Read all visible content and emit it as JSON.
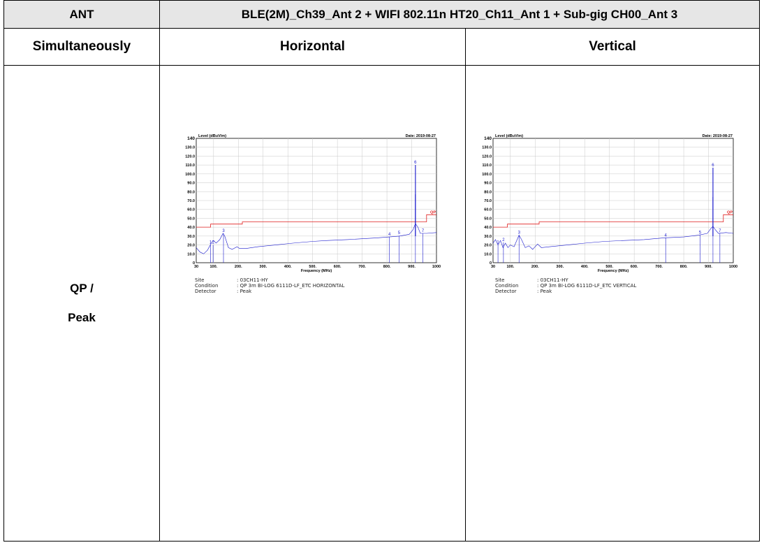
{
  "table": {
    "header_ant": "ANT",
    "header_config": "BLE(2M)_Ch39_Ant 2 + WIFI 802.11n HT20_Ch11_Ant 1 + Sub-gig CH00_Ant 3",
    "row_label": "Simultaneously",
    "col_horizontal": "Horizontal",
    "col_vertical": "Vertical",
    "mode_line1": "QP /",
    "mode_line2": "Peak"
  },
  "plots": [
    {
      "meta": {
        "site_key": "Site",
        "site_val": ": 03CH11-HY",
        "condition_key": "Condition",
        "condition_val": ": QP 3m BI-LOG 6111D-LF_ETC HORIZONTAL",
        "detector_key": "Detector",
        "detector_val": ": Peak"
      }
    },
    {
      "meta": {
        "site_key": "Site",
        "site_val": ": 03CH11-HY",
        "condition_key": "Condition",
        "condition_val": ": QP 3m BI-LOG 6111D-LF_ETC VERTICAL",
        "detector_key": "Detector",
        "detector_val": ": Peak"
      }
    }
  ],
  "chart_data": [
    {
      "type": "line",
      "ylabel": "Level (dBuV/m)",
      "xlabel": "Frequency (MHz)",
      "date": "Date: 2019-08-27",
      "xlim": [
        30,
        1000
      ],
      "ylim": [
        0,
        140
      ],
      "x_ticks": [
        "30",
        "100.",
        "200.",
        "300.",
        "400.",
        "500.",
        "600.",
        "700.",
        "800.",
        "900.",
        "1000"
      ],
      "x_tick_values": [
        30,
        100,
        200,
        300,
        400,
        500,
        600,
        700,
        800,
        900,
        1000
      ],
      "y_ticks": [
        "0",
        "10.0",
        "20.0",
        "30.0",
        "40.0",
        "50.0",
        "60.0",
        "70.0",
        "80.0",
        "90.0",
        "100.0",
        "110.0",
        "120.0",
        "130.0",
        "140"
      ],
      "grid": true,
      "limit_label": "QP",
      "limit_line": [
        [
          30,
          40
        ],
        [
          88,
          40
        ],
        [
          88,
          43.5
        ],
        [
          216,
          43.5
        ],
        [
          216,
          46
        ],
        [
          960,
          46
        ],
        [
          960,
          54
        ],
        [
          1000,
          54
        ]
      ],
      "trace": [
        [
          30,
          17
        ],
        [
          45,
          12
        ],
        [
          60,
          10
        ],
        [
          75,
          14
        ],
        [
          85,
          19
        ],
        [
          92,
          23
        ],
        [
          100,
          25
        ],
        [
          110,
          22
        ],
        [
          125,
          26
        ],
        [
          138,
          33
        ],
        [
          145,
          30
        ],
        [
          160,
          17
        ],
        [
          175,
          15
        ],
        [
          195,
          18
        ],
        [
          205,
          16
        ],
        [
          230,
          16
        ],
        [
          280,
          18
        ],
        [
          350,
          20
        ],
        [
          420,
          22
        ],
        [
          500,
          24
        ],
        [
          560,
          25
        ],
        [
          640,
          26
        ],
        [
          700,
          27
        ],
        [
          760,
          28
        ],
        [
          810,
          29
        ],
        [
          850,
          30
        ],
        [
          890,
          32
        ],
        [
          905,
          37
        ],
        [
          915,
          44
        ],
        [
          925,
          40
        ],
        [
          935,
          33
        ],
        [
          960,
          33
        ],
        [
          1000,
          34
        ]
      ],
      "spikes": [
        [
          915,
          77
        ],
        [
          915,
          110
        ]
      ],
      "markers": [
        {
          "label": "1",
          "x": 88,
          "y": 20.0
        },
        {
          "label": "2",
          "x": 98,
          "y": 20.0
        },
        {
          "label": "3",
          "x": 140,
          "y": 33.0
        },
        {
          "label": "4",
          "x": 810,
          "y": 29.0
        },
        {
          "label": "5",
          "x": 849,
          "y": 30.5
        },
        {
          "label": "6",
          "x": 915,
          "y": 110.0
        },
        {
          "label": "7",
          "x": 945,
          "y": 33.0
        }
      ]
    },
    {
      "type": "line",
      "ylabel": "Level (dBuV/m)",
      "xlabel": "Frequency (MHz)",
      "date": "Date: 2019-08-27",
      "xlim": [
        30,
        1000
      ],
      "ylim": [
        0,
        140
      ],
      "x_ticks": [
        "30",
        "100.",
        "200.",
        "300.",
        "400.",
        "500.",
        "600.",
        "700.",
        "800.",
        "900.",
        "1000"
      ],
      "x_tick_values": [
        30,
        100,
        200,
        300,
        400,
        500,
        600,
        700,
        800,
        900,
        1000
      ],
      "y_ticks": [
        "0",
        "10.0",
        "20.0",
        "30.0",
        "40.0",
        "50.0",
        "60.0",
        "70.0",
        "80.0",
        "90.0",
        "100.0",
        "110.0",
        "120.0",
        "130.0",
        "140"
      ],
      "grid": true,
      "limit_label": "QP",
      "limit_line": [
        [
          30,
          40
        ],
        [
          88,
          40
        ],
        [
          88,
          43.5
        ],
        [
          216,
          43.5
        ],
        [
          216,
          46
        ],
        [
          960,
          46
        ],
        [
          960,
          54
        ],
        [
          1000,
          54
        ]
      ],
      "trace": [
        [
          30,
          22
        ],
        [
          40,
          26
        ],
        [
          50,
          20
        ],
        [
          60,
          25
        ],
        [
          70,
          17
        ],
        [
          80,
          22
        ],
        [
          90,
          17
        ],
        [
          100,
          20
        ],
        [
          115,
          18
        ],
        [
          135,
          31
        ],
        [
          145,
          26
        ],
        [
          160,
          17
        ],
        [
          175,
          19
        ],
        [
          190,
          15
        ],
        [
          210,
          21
        ],
        [
          225,
          17
        ],
        [
          260,
          18
        ],
        [
          330,
          20
        ],
        [
          400,
          22
        ],
        [
          480,
          24
        ],
        [
          560,
          25
        ],
        [
          640,
          26
        ],
        [
          720,
          28
        ],
        [
          800,
          29
        ],
        [
          860,
          31
        ],
        [
          895,
          33
        ],
        [
          908,
          38
        ],
        [
          918,
          41
        ],
        [
          928,
          37
        ],
        [
          940,
          33
        ],
        [
          970,
          34
        ],
        [
          1000,
          33
        ]
      ],
      "spikes": [
        [
          918,
          74
        ],
        [
          918,
          107
        ]
      ],
      "markers": [
        {
          "label": "1",
          "x": 50,
          "y": 20.0
        },
        {
          "label": "2",
          "x": 72,
          "y": 23.0
        },
        {
          "label": "3",
          "x": 135,
          "y": 31.0
        },
        {
          "label": "4",
          "x": 727,
          "y": 28.0
        },
        {
          "label": "5",
          "x": 866,
          "y": 31.0
        },
        {
          "label": "6",
          "x": 918,
          "y": 107.0
        },
        {
          "label": "7",
          "x": 946,
          "y": 33.0
        }
      ]
    }
  ]
}
